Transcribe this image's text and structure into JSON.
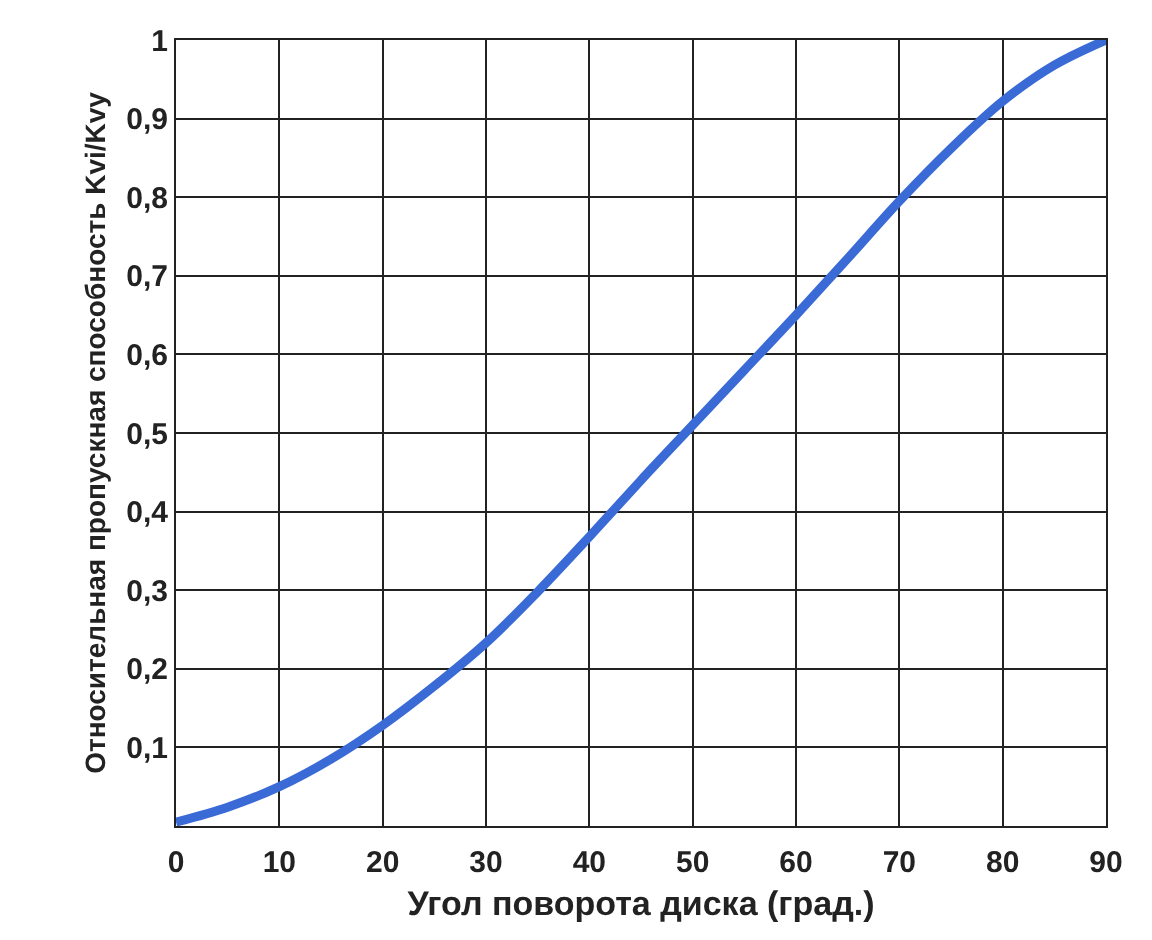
{
  "chart_data": {
    "type": "line",
    "xlabel": "Угол поворота диска (град.)",
    "ylabel": "Относительная пропускная способность Kvi/Kvy",
    "x": [
      0,
      5,
      10,
      15,
      20,
      25,
      30,
      35,
      40,
      45,
      50,
      55,
      60,
      65,
      70,
      75,
      80,
      85,
      90
    ],
    "series": [
      {
        "color": "#3a6ad6",
        "values": [
          0.005,
          0.024,
          0.05,
          0.085,
          0.128,
          0.178,
          0.233,
          0.298,
          0.368,
          0.44,
          0.51,
          0.58,
          0.65,
          0.722,
          0.795,
          0.862,
          0.922,
          0.968,
          1.0
        ]
      }
    ],
    "xlim": [
      0,
      90
    ],
    "ylim": [
      0,
      1
    ],
    "xticks": [
      0,
      10,
      20,
      30,
      40,
      50,
      60,
      70,
      80,
      90
    ],
    "yticks": [
      {
        "value": 0.1,
        "label": "0,1"
      },
      {
        "value": 0.2,
        "label": "0,2"
      },
      {
        "value": 0.3,
        "label": "0,3"
      },
      {
        "value": 0.4,
        "label": "0,4"
      },
      {
        "value": 0.5,
        "label": "0,5"
      },
      {
        "value": 0.6,
        "label": "0,6"
      },
      {
        "value": 0.7,
        "label": "0,7"
      },
      {
        "value": 0.8,
        "label": "0,8"
      },
      {
        "value": 0.9,
        "label": "0,9"
      },
      1
    ],
    "grid": true,
    "marker": "none",
    "line_style": "solid"
  }
}
